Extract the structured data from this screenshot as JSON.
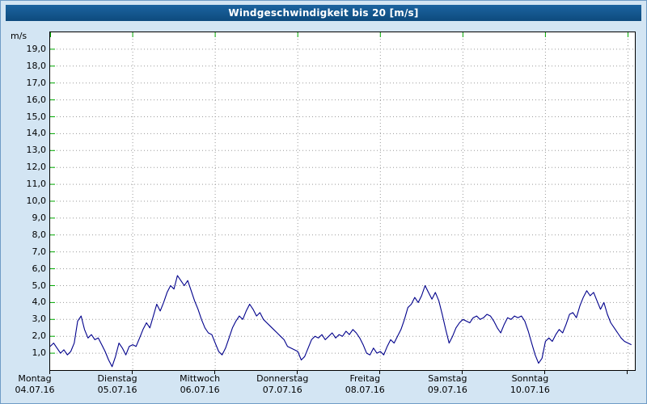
{
  "window": {
    "title": "Windgeschwindigkeit bis 20 [m/s]"
  },
  "colors": {
    "background": "#d3e5f3",
    "titlebar": "#11568e",
    "titlebar_text": "#ffffff",
    "plot_background": "#ffffff",
    "plot_border": "#000000",
    "grid": "#9a9a9a",
    "axis_tick_green": "#00aa00",
    "line": "#00008b",
    "label_text": "#000000"
  },
  "chart_data": {
    "type": "line",
    "title": "Windgeschwindigkeit bis 20 [m/s]",
    "ylabel_unit": "m/s",
    "ylim": [
      0,
      20
    ],
    "grid": "dotted",
    "legend": "none",
    "ytick_values": [
      1,
      2,
      3,
      4,
      5,
      6,
      7,
      8,
      9,
      10,
      11,
      12,
      13,
      14,
      15,
      16,
      17,
      18,
      19
    ],
    "ytick_labels": [
      "1,0",
      "2,0",
      "3,0",
      "4,0",
      "5,0",
      "6,0",
      "7,0",
      "8,0",
      "9,0",
      "10,0",
      "11,0",
      "12,0",
      "13,0",
      "14,0",
      "15,0",
      "16,0",
      "17,0",
      "18,0",
      "19,0"
    ],
    "x_max_hours": 170,
    "x_step_hours": 1,
    "x_start_hour": 0,
    "day_boundaries_hours": [
      0,
      24,
      48,
      72,
      96,
      120,
      144,
      168
    ],
    "days": [
      {
        "name": "Montag",
        "date": "04.07.16",
        "start_hour": 0
      },
      {
        "name": "Dienstag",
        "date": "05.07.16",
        "start_hour": 24
      },
      {
        "name": "Mittwoch",
        "date": "06.07.16",
        "start_hour": 48
      },
      {
        "name": "Donnerstag",
        "date": "07.07.16",
        "start_hour": 72
      },
      {
        "name": "Freitag",
        "date": "08.07.16",
        "start_hour": 96
      },
      {
        "name": "Samstag",
        "date": "09.07.16",
        "start_hour": 120
      },
      {
        "name": "Sonntag",
        "date": "10.07.16",
        "start_hour": 144
      }
    ],
    "series": [
      {
        "name": "Windgeschwindigkeit",
        "unit": "m/s",
        "color": "#00008b",
        "y_ms": [
          1.4,
          1.6,
          1.3,
          1.0,
          1.2,
          0.9,
          1.1,
          1.6,
          2.9,
          3.2,
          2.4,
          1.9,
          2.1,
          1.8,
          1.9,
          1.5,
          1.1,
          0.6,
          0.2,
          0.8,
          1.6,
          1.3,
          0.9,
          1.4,
          1.5,
          1.4,
          1.9,
          2.4,
          2.8,
          2.5,
          3.2,
          3.9,
          3.5,
          4.0,
          4.6,
          5.0,
          4.8,
          5.6,
          5.3,
          5.0,
          5.3,
          4.7,
          4.1,
          3.6,
          3.0,
          2.5,
          2.2,
          2.1,
          1.6,
          1.1,
          0.9,
          1.3,
          1.9,
          2.5,
          2.9,
          3.2,
          3.0,
          3.5,
          3.9,
          3.6,
          3.2,
          3.4,
          3.0,
          2.8,
          2.6,
          2.4,
          2.2,
          2.0,
          1.8,
          1.4,
          1.3,
          1.2,
          1.1,
          0.6,
          0.8,
          1.3,
          1.8,
          2.0,
          1.9,
          2.1,
          1.8,
          2.0,
          2.2,
          1.9,
          2.1,
          2.0,
          2.3,
          2.1,
          2.4,
          2.2,
          1.9,
          1.5,
          1.0,
          0.9,
          1.3,
          1.0,
          1.1,
          0.9,
          1.4,
          1.8,
          1.6,
          2.0,
          2.4,
          3.0,
          3.7,
          3.9,
          4.3,
          4.0,
          4.4,
          5.0,
          4.6,
          4.2,
          4.6,
          4.1,
          3.3,
          2.4,
          1.6,
          2.0,
          2.5,
          2.8,
          3.0,
          2.9,
          2.8,
          3.1,
          3.2,
          3.0,
          3.1,
          3.3,
          3.2,
          2.9,
          2.5,
          2.2,
          2.7,
          3.1,
          3.0,
          3.2,
          3.1,
          3.2,
          2.9,
          2.3,
          1.6,
          0.9,
          0.4,
          0.7,
          1.7,
          1.9,
          1.7,
          2.1,
          2.4,
          2.2,
          2.7,
          3.3,
          3.4,
          3.1,
          3.8,
          4.3,
          4.7,
          4.4,
          4.6,
          4.1,
          3.6,
          4.0,
          3.3,
          2.8,
          2.5,
          2.2,
          1.9,
          1.7,
          1.6,
          1.5
        ]
      }
    ]
  }
}
